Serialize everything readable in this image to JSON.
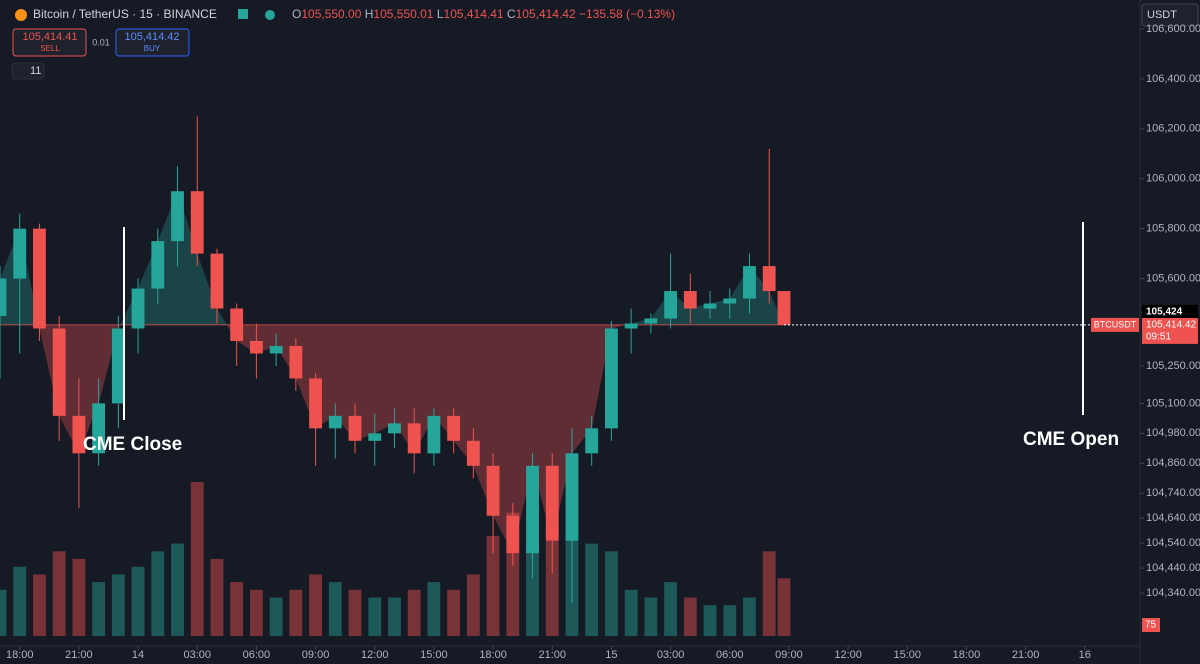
{
  "chart_data": {
    "type": "candlestick",
    "header": {
      "symbol": "Bitcoin / TetherUS · 15 · BINANCE",
      "o_label": "O",
      "o": "105,550.00",
      "h_label": "H",
      "h": "105,550.01",
      "l_label": "L",
      "l": "105,414.41",
      "c_label": "C",
      "c": "105,414.42",
      "change": "−135.58 (−0.13%)"
    },
    "ui": {
      "sell_price": "105,414.41",
      "sell": "SELL",
      "spread": "0.01",
      "buy_price": "105,414.42",
      "buy": "BUY",
      "indicators": "11",
      "currency": "USDT",
      "symbol_tag": "BTCUSDT",
      "price_tag": "105,414.42",
      "countdown": "09:51",
      "crosshair_price": "105,424",
      "volume_tag": "75"
    },
    "annotations": [
      {
        "text": "CME Close"
      },
      {
        "text": "CME Open"
      }
    ],
    "last_price": 105414.42,
    "x": [
      -1,
      0,
      1,
      2,
      3,
      4,
      5,
      6,
      7,
      8,
      9,
      10,
      11,
      12,
      13,
      14,
      15,
      16,
      17,
      18,
      19,
      20,
      21,
      22,
      23,
      24,
      25,
      26,
      27,
      28,
      29,
      30,
      31,
      32,
      33,
      34,
      35,
      36,
      37,
      38,
      38.75
    ],
    "open": [
      105450,
      105600,
      105800,
      105400,
      105050,
      104900,
      105100,
      105400,
      105560,
      105750,
      105950,
      105700,
      105480,
      105350,
      105300,
      105330,
      105200,
      105000,
      105050,
      104950,
      104980,
      105020,
      104900,
      105050,
      104950,
      104850,
      104650,
      104500,
      104850,
      104550,
      104900,
      105000,
      105400,
      105420,
      105440,
      105550,
      105480,
      105500,
      105520,
      105650,
      105550
    ],
    "high": [
      105650,
      105860,
      105820,
      105450,
      105200,
      105200,
      105450,
      105600,
      105800,
      106050,
      106250,
      105720,
      105500,
      105420,
      105380,
      105360,
      105220,
      105100,
      105100,
      105060,
      105080,
      105080,
      105080,
      105080,
      105000,
      104900,
      104700,
      104900,
      104900,
      105000,
      105050,
      105430,
      105480,
      105460,
      105700,
      105620,
      105550,
      105560,
      105700,
      106120,
      105550.01
    ],
    "low": [
      105200,
      105300,
      105350,
      104950,
      104680,
      104850,
      105000,
      105300,
      105500,
      105650,
      105650,
      105420,
      105250,
      105200,
      105250,
      105150,
      104850,
      104880,
      104900,
      104850,
      104920,
      104820,
      104850,
      104900,
      104800,
      104500,
      104450,
      104400,
      104420,
      104300,
      104850,
      104950,
      105300,
      105380,
      105400,
      105420,
      105440,
      105440,
      105460,
      105500,
      105414.41
    ],
    "close": [
      105600,
      105800,
      105400,
      105050,
      104900,
      105100,
      105400,
      105560,
      105750,
      105950,
      105700,
      105480,
      105350,
      105300,
      105330,
      105200,
      105000,
      105050,
      104950,
      104980,
      105020,
      104900,
      105050,
      104950,
      104850,
      104650,
      104500,
      104850,
      104550,
      104900,
      105000,
      105400,
      105420,
      105440,
      105550,
      105480,
      105500,
      105520,
      105650,
      105550,
      105414.42
    ],
    "volume": [
      60,
      90,
      80,
      110,
      100,
      70,
      80,
      90,
      110,
      120,
      200,
      100,
      70,
      60,
      50,
      60,
      80,
      70,
      60,
      50,
      50,
      60,
      70,
      60,
      80,
      130,
      160,
      120,
      140,
      150,
      120,
      110,
      60,
      50,
      70,
      50,
      40,
      40,
      50,
      110,
      75
    ],
    "up_color": "#26a69a",
    "down_color": "#ef5350",
    "xlim": [
      -1,
      56.8
    ],
    "ylim": [
      104112,
      106716
    ],
    "vlim": [
      0,
      500
    ],
    "xticks": [
      {
        "value": 0,
        "label": "18:00"
      },
      {
        "value": 3,
        "label": "21:00"
      },
      {
        "value": 6,
        "label": "14"
      },
      {
        "value": 9,
        "label": "03:00"
      },
      {
        "value": 12,
        "label": "06:00"
      },
      {
        "value": 15,
        "label": "09:00"
      },
      {
        "value": 18,
        "label": "12:00"
      },
      {
        "value": 21,
        "label": "15:00"
      },
      {
        "value": 24,
        "label": "18:00"
      },
      {
        "value": 27,
        "label": "21:00"
      },
      {
        "value": 30,
        "label": "15"
      },
      {
        "value": 33,
        "label": "03:00"
      },
      {
        "value": 36,
        "label": "06:00"
      },
      {
        "value": 39,
        "label": "09:00"
      },
      {
        "value": 42,
        "label": "12:00"
      },
      {
        "value": 45,
        "label": "15:00"
      },
      {
        "value": 48,
        "label": "18:00"
      },
      {
        "value": 51,
        "label": "21:00"
      },
      {
        "value": 54,
        "label": "16"
      }
    ],
    "yticks": [
      {
        "value": 106600,
        "label": "106,600.00"
      },
      {
        "value": 106400,
        "label": "106,400.00"
      },
      {
        "value": 106200,
        "label": "106,200.00"
      },
      {
        "value": 106000,
        "label": "106,000.00"
      },
      {
        "value": 105800,
        "label": "105,800.00"
      },
      {
        "value": 105600,
        "label": "105,600.00"
      },
      {
        "value": 105250,
        "label": "105,250.00"
      },
      {
        "value": 105100,
        "label": "105,100.00"
      },
      {
        "value": 104980,
        "label": "104,980.00"
      },
      {
        "value": 104860,
        "label": "104,860.00"
      },
      {
        "value": 104740,
        "label": "104,740.00"
      },
      {
        "value": 104640,
        "label": "104,640.00"
      },
      {
        "value": 104540,
        "label": "104,540.00"
      },
      {
        "value": 104440,
        "label": "104,440.00"
      },
      {
        "value": 104340,
        "label": "104,340.00"
      }
    ],
    "grid": false
  }
}
